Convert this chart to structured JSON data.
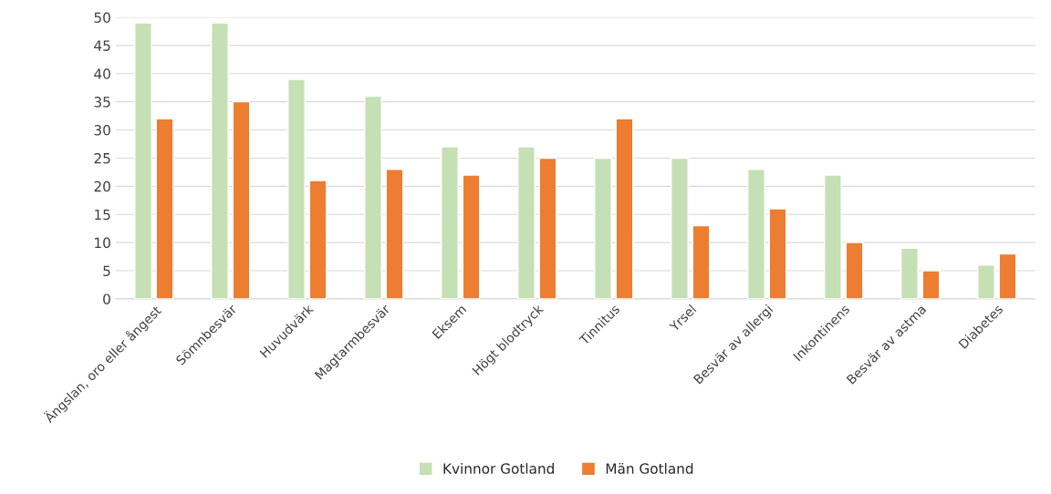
{
  "chart_data": {
    "type": "bar",
    "categories": [
      "Ängslan, oro eller ångest",
      "Sömnbesvär",
      "Huvudvärk",
      "Magtarmbesvär",
      "Eksem",
      "Högt blodtryck",
      "Tinnitus",
      "Yrsel",
      "Besvär av allergi",
      "Inkontinens",
      "Besvär av astma",
      "Diabetes"
    ],
    "series": [
      {
        "name": "Kvinnor Gotland",
        "color": "#c5e0b4",
        "values": [
          49,
          49,
          39,
          36,
          27,
          27,
          25,
          25,
          23,
          22,
          9,
          6
        ]
      },
      {
        "name": "Män Gotland",
        "color": "#ed7d31",
        "values": [
          32,
          35,
          21,
          23,
          22,
          25,
          32,
          13,
          16,
          10,
          5,
          8
        ]
      }
    ],
    "ylim": [
      0,
      50
    ],
    "yticks": [
      0,
      5,
      10,
      15,
      20,
      25,
      30,
      35,
      40,
      45,
      50
    ],
    "grid": "y",
    "legend": "bottom"
  }
}
